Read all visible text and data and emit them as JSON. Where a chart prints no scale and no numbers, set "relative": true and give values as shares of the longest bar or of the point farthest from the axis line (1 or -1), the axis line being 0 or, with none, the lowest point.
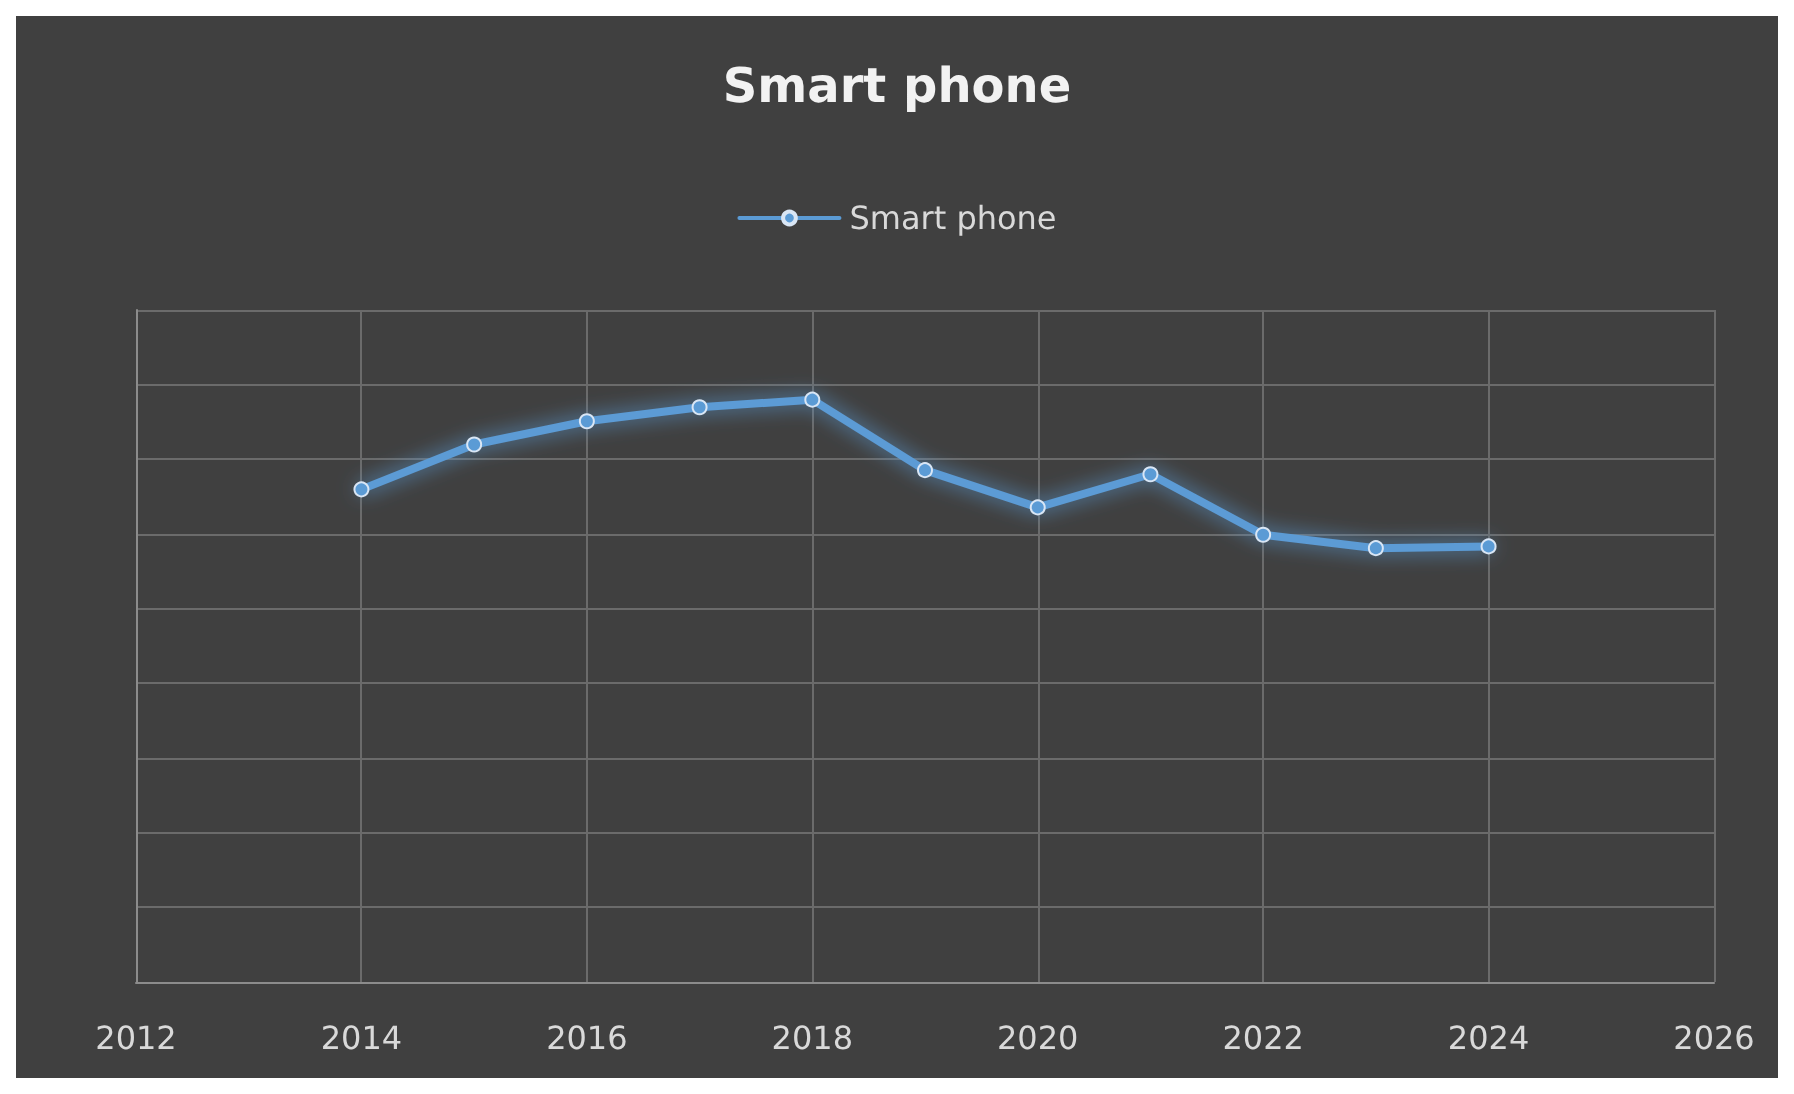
{
  "chart_data": {
    "type": "line",
    "title": "Smart phone",
    "relative": true,
    "x": [
      2014,
      2015,
      2016,
      2017,
      2018,
      2019,
      2020,
      2021,
      2022,
      2023,
      2024
    ],
    "series": [
      {
        "name": "Smart phone",
        "color": "#5b9bd5",
        "values": [
          0.846,
          0.923,
          0.963,
          0.987,
          1,
          0.879,
          0.815,
          0.872,
          0.768,
          0.745,
          0.748
        ]
      }
    ],
    "xlim": [
      2012,
      2026
    ],
    "xticks": [
      2012,
      2014,
      2016,
      2018,
      2020,
      2022,
      2024,
      2026
    ],
    "grid": true,
    "legend": "top",
    "marker": "circle",
    "line_style": "solid"
  }
}
